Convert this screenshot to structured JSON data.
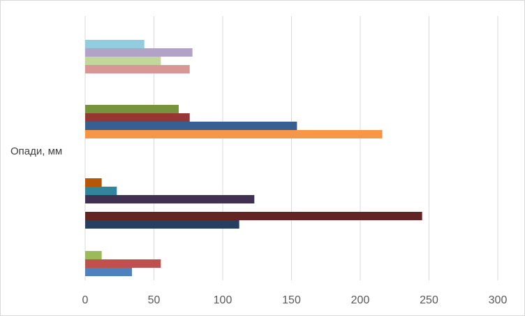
{
  "chart_data": {
    "type": "bar",
    "orientation": "horizontal",
    "title": "",
    "ylabel": "Опади, мм",
    "xlabel": "",
    "xlim": [
      0,
      300
    ],
    "x_ticks": [
      "0",
      "50",
      "100",
      "150",
      "200",
      "250",
      "300"
    ],
    "grid": true,
    "legend": "none",
    "groups": [
      {
        "bars": [
          {
            "value": 43,
            "color": "#93CDDD"
          },
          {
            "value": 78,
            "color": "#B3A2C7"
          },
          {
            "value": 55,
            "color": "#C3D69B"
          },
          {
            "value": 76,
            "color": "#D99694"
          }
        ]
      },
      {
        "bars": [
          {
            "value": 68,
            "color": "#77933C"
          },
          {
            "value": 76,
            "color": "#953735"
          },
          {
            "value": 154,
            "color": "#376092"
          },
          {
            "value": 216,
            "color": "#F79646"
          }
        ]
      },
      {
        "bars": [
          {
            "value": 12,
            "color": "#B65708"
          },
          {
            "value": 23,
            "color": "#31859C"
          },
          {
            "value": 123,
            "color": "#403152"
          },
          {
            "value": 0,
            "color": "#FFFFFF"
          },
          {
            "value": 245,
            "color": "#632523"
          },
          {
            "value": 112,
            "color": "#254061"
          }
        ]
      },
      {
        "bars": [
          {
            "value": 12,
            "color": "#9BBB59"
          },
          {
            "value": 55,
            "color": "#C0504D"
          },
          {
            "value": 34,
            "color": "#4F81BD"
          }
        ]
      }
    ]
  }
}
